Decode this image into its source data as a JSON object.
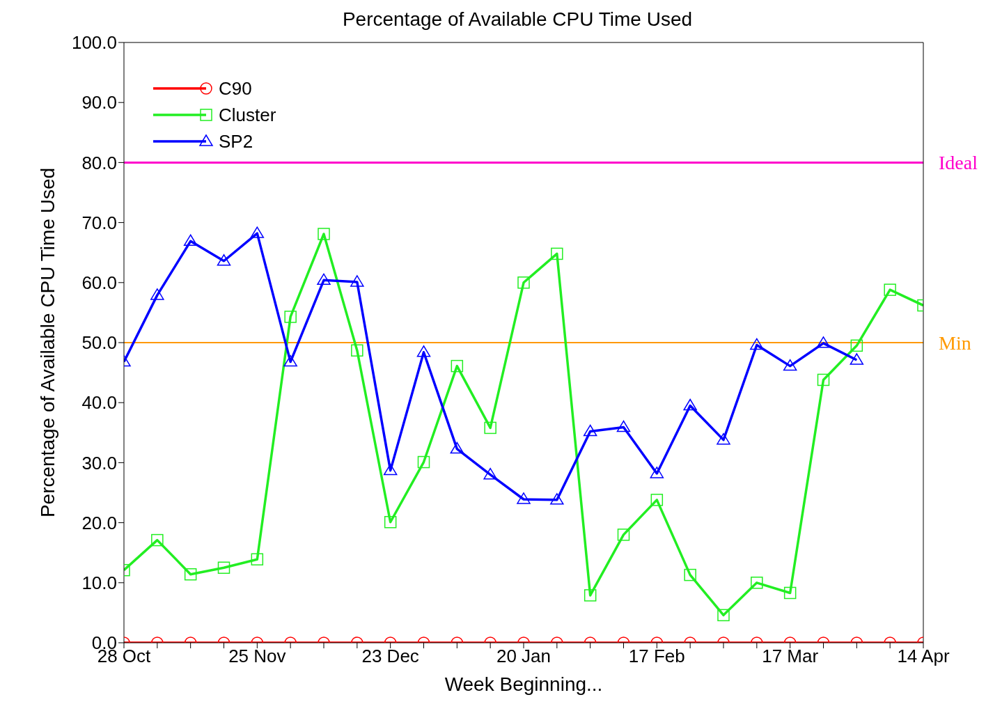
{
  "chart_data": {
    "type": "line",
    "title": "Percentage of Available CPU Time Used",
    "xlabel": "Week Beginning...",
    "ylabel": "Percentage of Available CPU Time Used",
    "categories": [
      "28 Oct",
      null,
      null,
      null,
      "25 Nov",
      null,
      null,
      null,
      "23 Dec",
      null,
      null,
      null,
      "20 Jan",
      null,
      null,
      null,
      "17 Feb",
      null,
      null,
      null,
      "17 Mar",
      null,
      null,
      null,
      "14 Apr"
    ],
    "series": [
      {
        "name": "C90",
        "color": "#ff0000",
        "marker": "circle",
        "values": [
          0,
          0,
          0,
          0,
          0,
          0,
          0,
          0,
          0,
          0,
          0,
          0,
          0,
          0,
          0,
          0,
          0,
          0,
          0,
          0,
          0,
          0,
          0,
          0,
          0
        ]
      },
      {
        "name": "Cluster",
        "color": "#22ee22",
        "marker": "square",
        "values": [
          12.1,
          17.1,
          11.4,
          12.5,
          13.9,
          54.3,
          68.1,
          48.7,
          20.1,
          30.1,
          46.1,
          35.8,
          60.0,
          64.8,
          7.9,
          18.0,
          23.8,
          11.3,
          4.6,
          10.0,
          8.3,
          43.8,
          49.5,
          58.8,
          56.2
        ]
      },
      {
        "name": "SP2",
        "color": "#0000ff",
        "marker": "triangle",
        "values": [
          46.8,
          57.9,
          66.9,
          63.6,
          68.2,
          46.8,
          60.4,
          60.1,
          28.7,
          48.4,
          32.3,
          28.0,
          23.9,
          23.8,
          35.2,
          35.9,
          28.2,
          39.5,
          33.8,
          49.6,
          46.1,
          49.9,
          47.1,
          null,
          null
        ]
      }
    ],
    "ylim": [
      0,
      100
    ],
    "yticks": [
      {
        "value": 0,
        "label": "0.0"
      },
      {
        "value": 10,
        "label": "10.0"
      },
      {
        "value": 20,
        "label": "20.0"
      },
      {
        "value": 30,
        "label": "30.0"
      },
      {
        "value": 40,
        "label": "40.0"
      },
      {
        "value": 50,
        "label": "50.0"
      },
      {
        "value": 60,
        "label": "60.0"
      },
      {
        "value": 70,
        "label": "70.0"
      },
      {
        "value": 80,
        "label": "80.0"
      },
      {
        "value": 90,
        "label": "90.0"
      },
      {
        "value": 100,
        "label": "100.0"
      }
    ],
    "ref_lines": [
      {
        "axis": "y",
        "value": 80,
        "label": "Ideal",
        "color": "#ff00cc"
      },
      {
        "axis": "y",
        "value": 50,
        "label": "Min",
        "color": "#ff9900"
      }
    ],
    "grid": false,
    "legend": "top left",
    "line_style": "solid"
  }
}
